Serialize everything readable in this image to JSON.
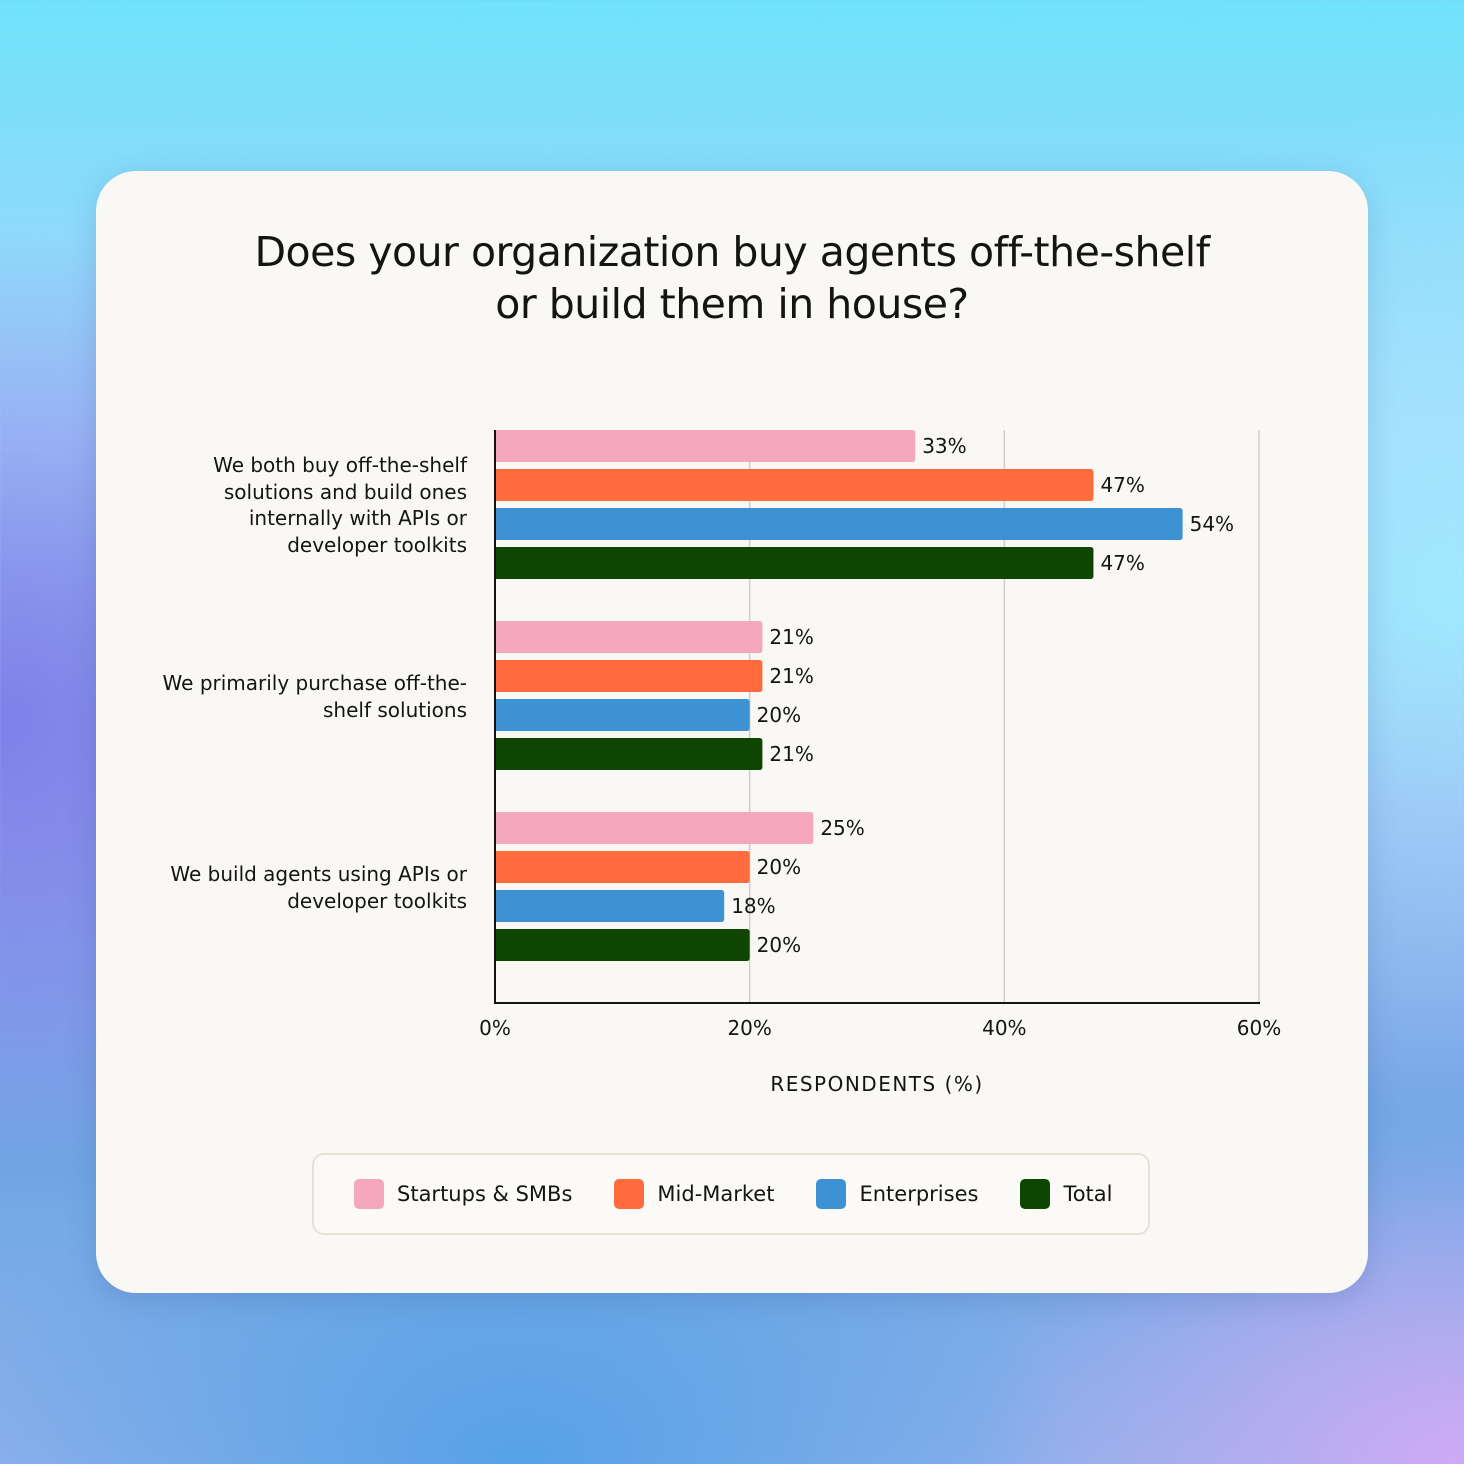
{
  "chart_data": {
    "type": "bar",
    "orientation": "horizontal",
    "title": "Does your organization buy agents off-the-shelf or build them in house?",
    "title_lines": [
      "Does your organization buy agents off-the-shelf",
      "or build them in house?"
    ],
    "categories": [
      "We both buy off-the-shelf solutions and build ones internally with APIs or developer toolkits",
      "We primarily purchase off-the-shelf solutions",
      "We build agents using APIs or developer toolkits"
    ],
    "category_label_lines": [
      [
        "We both buy off-the-shelf",
        "solutions and build ones",
        "internally with APIs or",
        "developer toolkits"
      ],
      [
        "We primarily purchase off-the-",
        "shelf solutions"
      ],
      [
        "We build agents using APIs or",
        "developer toolkits"
      ]
    ],
    "series": [
      {
        "name": "Startups & SMBs",
        "color": "#f5a7c0",
        "values": [
          33,
          21,
          25
        ]
      },
      {
        "name": "Mid-Market",
        "color": "#ff6b3d",
        "values": [
          47,
          21,
          20
        ]
      },
      {
        "name": "Enterprises",
        "color": "#3d92d3",
        "values": [
          54,
          20,
          18
        ]
      },
      {
        "name": "Total",
        "color": "#0d4501",
        "values": [
          47,
          21,
          20
        ]
      }
    ],
    "xlabel": "RESPONDENTS (%)",
    "ylabel": "",
    "xlim": [
      0,
      60
    ],
    "xticks": [
      0,
      20,
      40,
      60
    ],
    "xtick_labels": [
      "0%",
      "20%",
      "40%",
      "60%"
    ],
    "value_suffix": "%",
    "grid": true,
    "legend_position": "bottom"
  }
}
